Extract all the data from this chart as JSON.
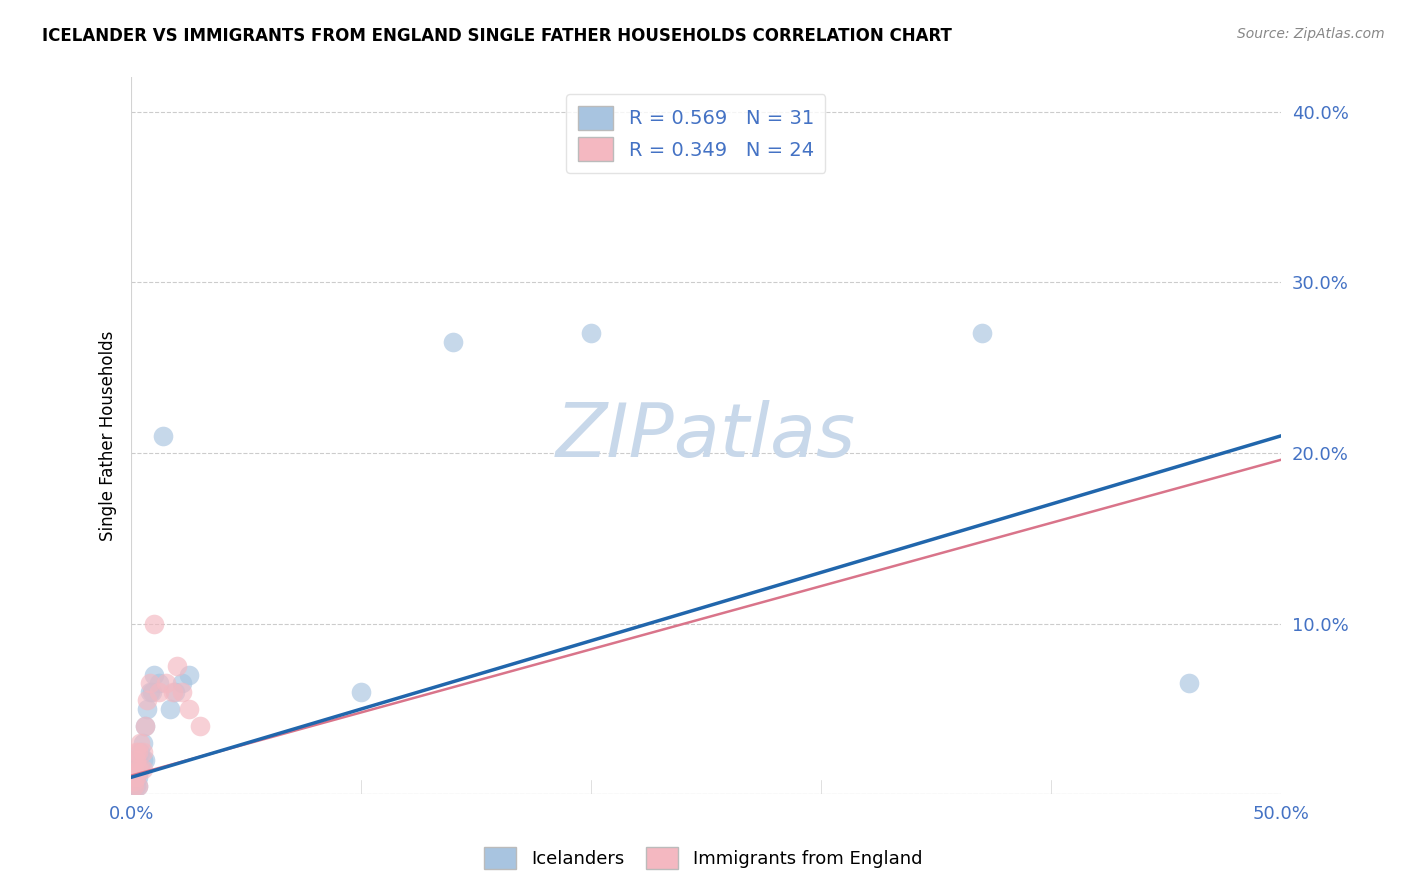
{
  "title": "ICELANDER VS IMMIGRANTS FROM ENGLAND SINGLE FATHER HOUSEHOLDS CORRELATION CHART",
  "source": "Source: ZipAtlas.com",
  "ylabel": "Single Father Households",
  "xlim": [
    0.0,
    0.5
  ],
  "ylim": [
    0.0,
    0.42
  ],
  "blue_R": "0.569",
  "blue_N": "31",
  "pink_R": "0.349",
  "pink_N": "24",
  "icelanders_x": [
    0.001,
    0.001,
    0.001,
    0.002,
    0.002,
    0.002,
    0.002,
    0.003,
    0.003,
    0.003,
    0.004,
    0.004,
    0.005,
    0.005,
    0.006,
    0.006,
    0.007,
    0.008,
    0.009,
    0.01,
    0.012,
    0.014,
    0.017,
    0.019,
    0.022,
    0.025,
    0.1,
    0.14,
    0.2,
    0.37,
    0.46
  ],
  "icelanders_y": [
    0.005,
    0.01,
    0.015,
    0.005,
    0.01,
    0.015,
    0.02,
    0.005,
    0.01,
    0.02,
    0.015,
    0.025,
    0.02,
    0.03,
    0.02,
    0.04,
    0.05,
    0.06,
    0.06,
    0.07,
    0.065,
    0.21,
    0.05,
    0.06,
    0.065,
    0.07,
    0.06,
    0.265,
    0.27,
    0.27,
    0.065
  ],
  "england_x": [
    0.001,
    0.001,
    0.001,
    0.002,
    0.002,
    0.002,
    0.003,
    0.003,
    0.003,
    0.004,
    0.004,
    0.005,
    0.005,
    0.006,
    0.007,
    0.008,
    0.01,
    0.012,
    0.015,
    0.018,
    0.02,
    0.022,
    0.025,
    0.03
  ],
  "england_y": [
    0.005,
    0.008,
    0.015,
    0.01,
    0.02,
    0.025,
    0.005,
    0.015,
    0.025,
    0.015,
    0.03,
    0.015,
    0.025,
    0.04,
    0.055,
    0.065,
    0.1,
    0.06,
    0.065,
    0.06,
    0.075,
    0.06,
    0.05,
    0.04
  ],
  "blue_color": "#a8c4e0",
  "pink_color": "#f4b8c1",
  "blue_line_color": "#2166ac",
  "pink_line_color": "#d9748a",
  "watermark_color": "#c8d8ea",
  "background_color": "#ffffff",
  "grid_color": "#cccccc",
  "tick_color": "#4472c4"
}
